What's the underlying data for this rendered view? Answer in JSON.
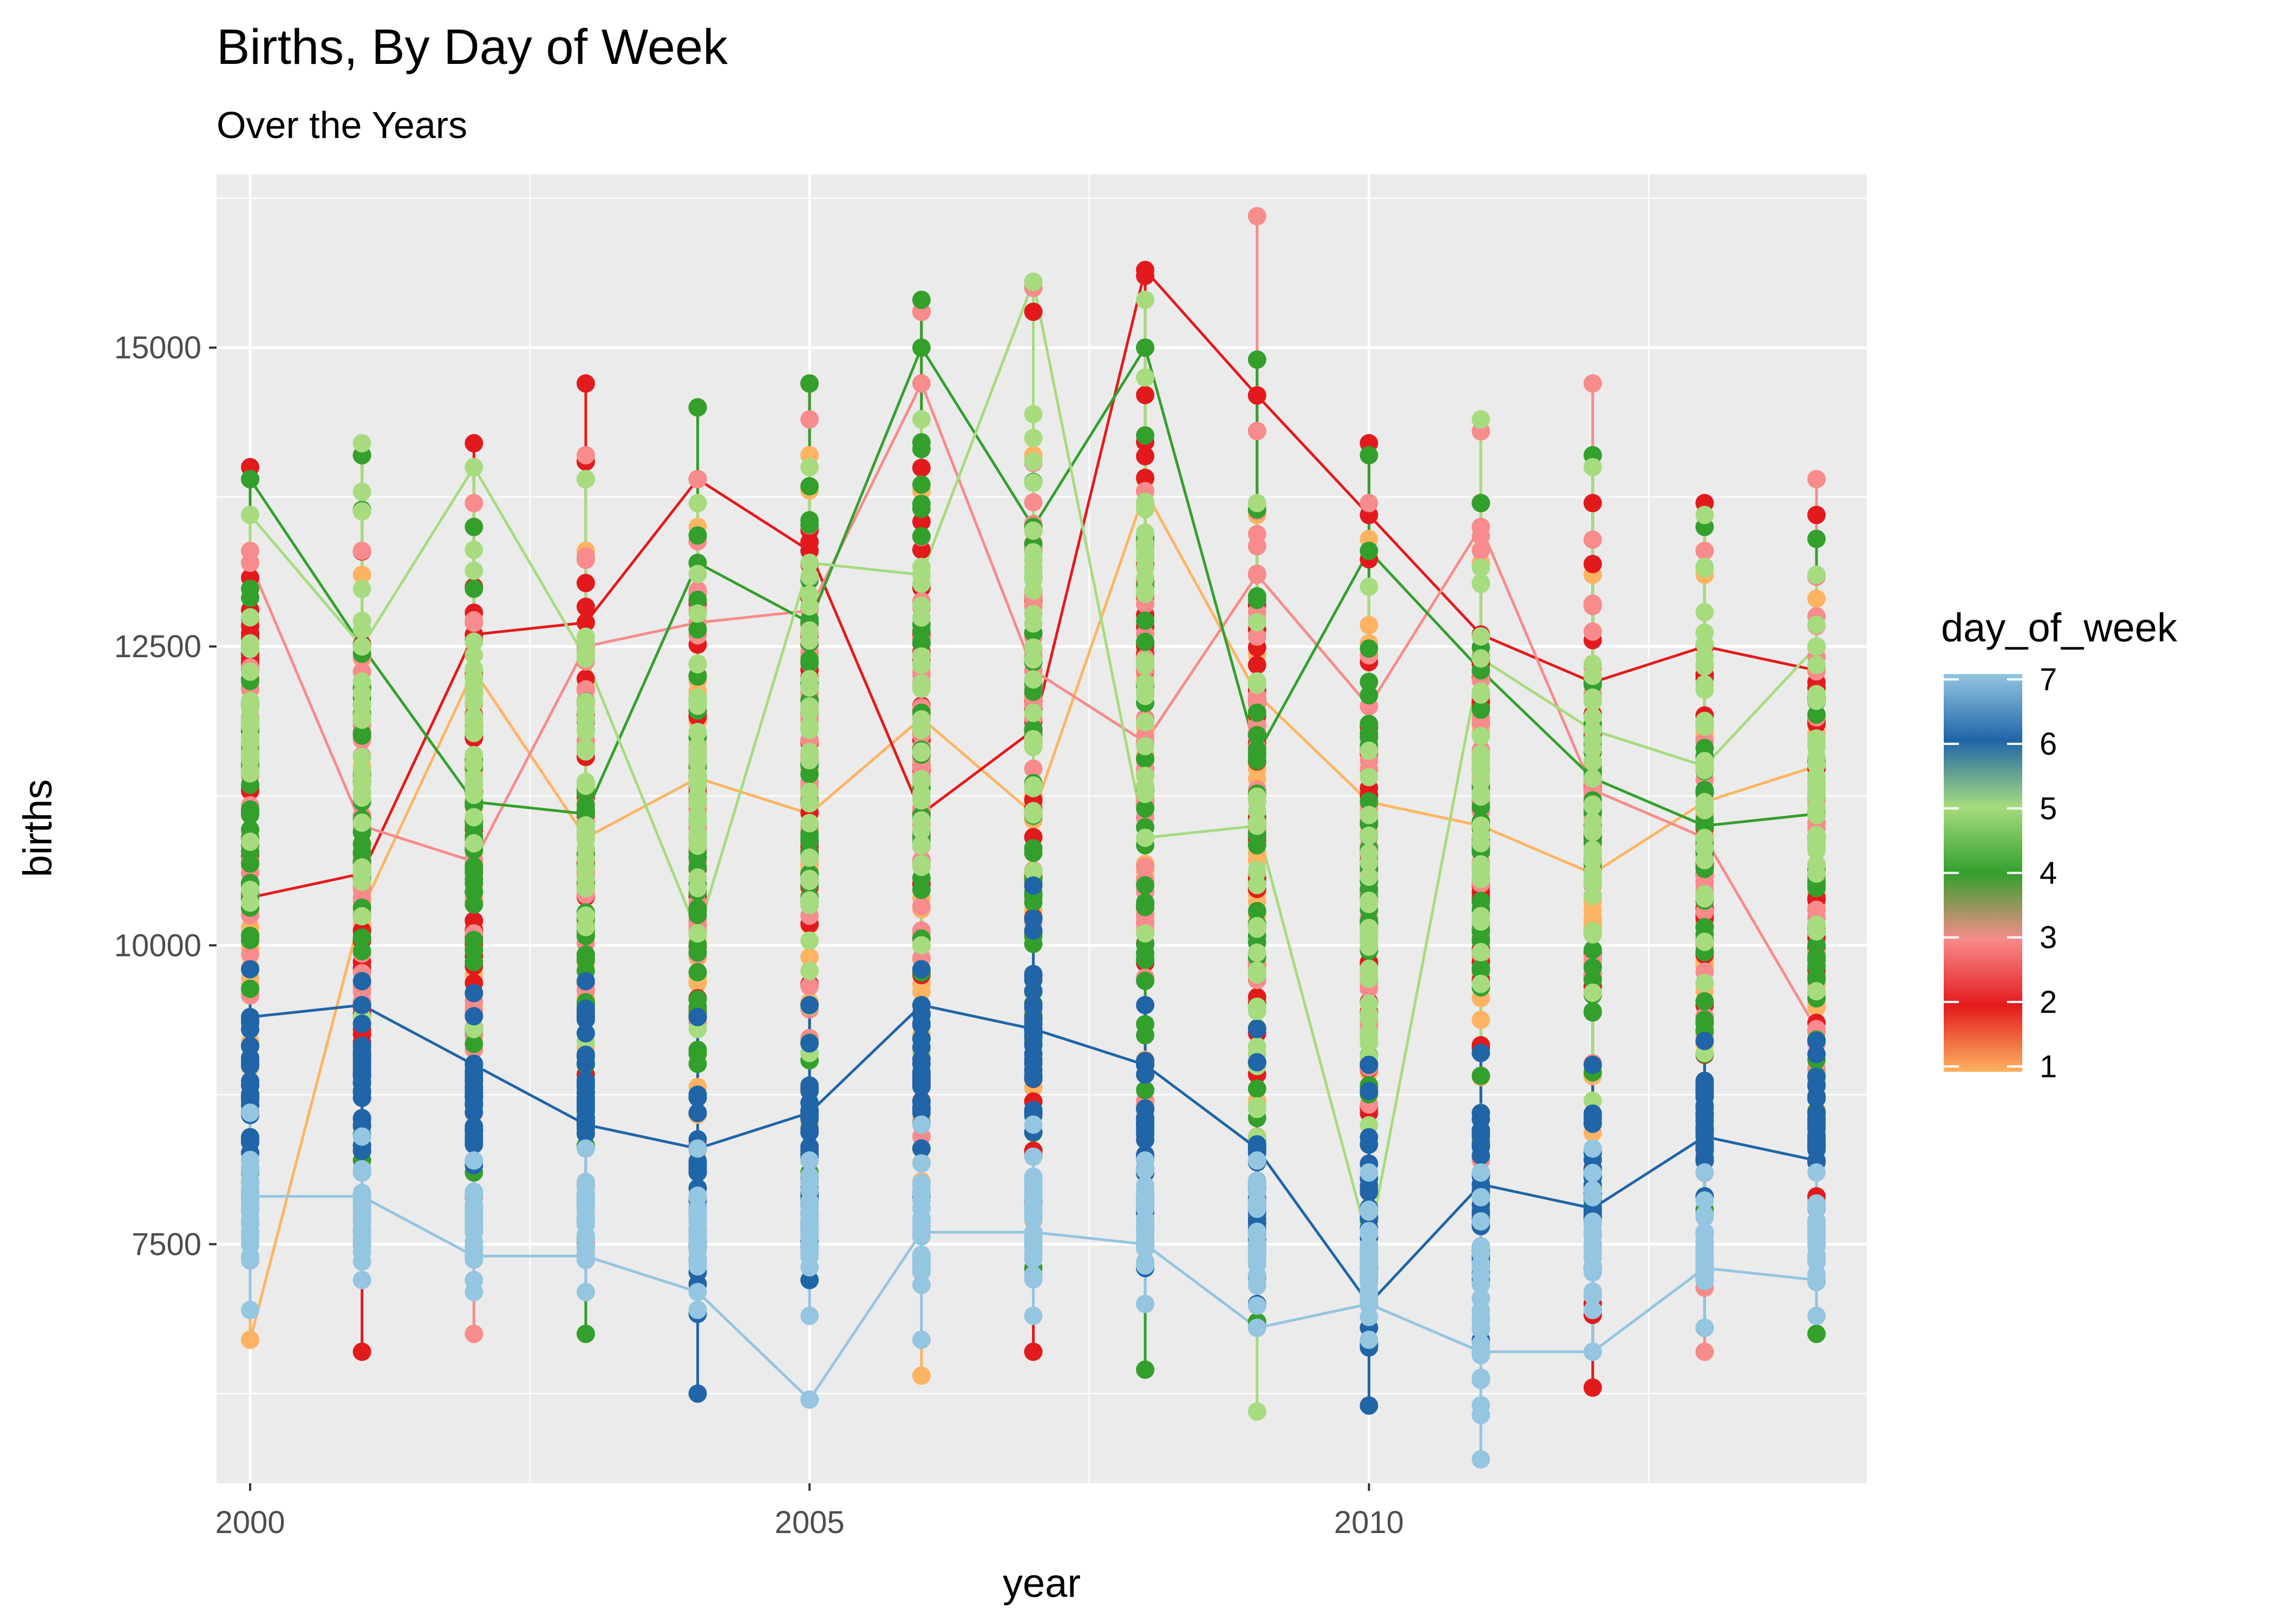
{
  "chart_data": {
    "type": "scatter",
    "title": "Births, By Day of Week",
    "subtitle": "Over the Years",
    "xlabel": "year",
    "ylabel": "births",
    "xlim": [
      1999.7,
      2014.45
    ],
    "ylim": [
      5500,
      16450
    ],
    "x_ticks": [
      2000,
      2005,
      2010
    ],
    "y_ticks": [
      7500,
      10000,
      12500,
      15000
    ],
    "grid": true,
    "legend": {
      "title": "day_of_week",
      "position": "right",
      "type": "colorbar",
      "min": 1,
      "max": 7,
      "ticks": [
        1,
        2,
        3,
        4,
        5,
        6,
        7
      ]
    },
    "colors": {
      "1": "#FDB462",
      "2": "#E31A1C",
      "3": "#F88B8B",
      "4": "#33A02C",
      "5": "#A6DC7E",
      "6": "#1F65A8",
      "7": "#94C5E1"
    },
    "series": [
      {
        "day_of_week": 1,
        "x": [
          2000,
          2001,
          2002,
          2003,
          2004,
          2005,
          2006,
          2007,
          2008,
          2009,
          2010,
          2011,
          2012,
          2013,
          2014
        ],
        "low": [
          6700,
          7600,
          7600,
          7400,
          7600,
          8500,
          6400,
          7700,
          8100,
          8700,
          7300,
          8100,
          7800,
          7400,
          7500
        ],
        "high": [
          13200,
          13100,
          13500,
          13300,
          13500,
          14100,
          13800,
          14100,
          13900,
          13600,
          13400,
          13200,
          13100,
          13100,
          12900
        ],
        "path": [
          6700,
          10300,
          12300,
          10900,
          11400,
          11100,
          11900,
          11100,
          13800,
          12100,
          11200,
          11000,
          10600,
          11200,
          11500
        ]
      },
      {
        "day_of_week": 2,
        "x": [
          2000,
          2001,
          2002,
          2003,
          2004,
          2005,
          2006,
          2007,
          2008,
          2009,
          2010,
          2011,
          2012,
          2013,
          2014
        ],
        "low": [
          10400,
          6600,
          7900,
          7500,
          8600,
          8800,
          8700,
          6600,
          7800,
          8300,
          7300,
          7900,
          6300,
          7200,
          7900
        ],
        "high": [
          14000,
          14100,
          14200,
          14700,
          14500,
          14700,
          15300,
          15300,
          15600,
          14600,
          14200,
          13700,
          13700,
          13700,
          13600
        ],
        "path": [
          10400,
          10600,
          12600,
          12700,
          13900,
          13300,
          11100,
          11800,
          15650,
          14600,
          13600,
          12600,
          12200,
          12500,
          12300
        ]
      },
      {
        "day_of_week": 3,
        "x": [
          2000,
          2001,
          2002,
          2003,
          2004,
          2005,
          2006,
          2007,
          2008,
          2009,
          2010,
          2011,
          2012,
          2013,
          2014
        ],
        "low": [
          8700,
          7700,
          6750,
          7400,
          7500,
          7700,
          8400,
          8600,
          8700,
          8400,
          7200,
          8200,
          7700,
          6600,
          7800
        ],
        "high": [
          13300,
          13300,
          13700,
          14100,
          13900,
          14400,
          15300,
          15500,
          13800,
          16100,
          13700,
          14300,
          14700,
          13300,
          13900
        ],
        "path": [
          13200,
          11000,
          10700,
          12500,
          12700,
          12800,
          14700,
          12300,
          11700,
          13100,
          12000,
          13500,
          11300,
          10900,
          9300
        ]
      },
      {
        "day_of_week": 4,
        "x": [
          2000,
          2001,
          2002,
          2003,
          2004,
          2005,
          2006,
          2007,
          2008,
          2009,
          2010,
          2011,
          2012,
          2013,
          2014
        ],
        "low": [
          8100,
          8200,
          8100,
          6750,
          7800,
          8100,
          8300,
          7300,
          6450,
          6850,
          7700,
          7900,
          7300,
          6800,
          6750
        ],
        "high": [
          13900,
          14100,
          13500,
          13900,
          14500,
          14700,
          15400,
          15550,
          15000,
          14900,
          14100,
          13700,
          14100,
          13500,
          13400
        ],
        "path": [
          13900,
          12500,
          11200,
          11100,
          13200,
          12700,
          15000,
          13500,
          15000,
          11600,
          13300,
          12300,
          11400,
          11000,
          11100
        ]
      },
      {
        "day_of_week": 5,
        "x": [
          2000,
          2001,
          2002,
          2003,
          2004,
          2005,
          2006,
          2007,
          2008,
          2009,
          2010,
          2011,
          2012,
          2013,
          2014
        ],
        "low": [
          9800,
          9400,
          9300,
          9200,
          9300,
          9100,
          9100,
          9600,
          10100,
          6100,
          7500,
          8600,
          8700,
          9100,
          8900
        ],
        "high": [
          13600,
          14200,
          14000,
          13900,
          13700,
          14000,
          14400,
          15550,
          15400,
          13700,
          13000,
          14400,
          14000,
          13600,
          13100
        ],
        "path": [
          13600,
          12500,
          14000,
          12400,
          10100,
          13200,
          13100,
          15550,
          10900,
          11000,
          7500,
          12400,
          11800,
          11500,
          12500
        ]
      },
      {
        "day_of_week": 6,
        "x": [
          2000,
          2001,
          2002,
          2003,
          2004,
          2005,
          2006,
          2007,
          2008,
          2009,
          2010,
          2011,
          2012,
          2013,
          2014
        ],
        "low": [
          7900,
          8100,
          7800,
          7900,
          6250,
          7200,
          7900,
          7900,
          7300,
          7000,
          6150,
          6700,
          7300,
          7900,
          7800
        ],
        "high": [
          9800,
          9700,
          9600,
          9700,
          9400,
          9500,
          9800,
          10500,
          9500,
          9300,
          9000,
          9100,
          9000,
          9200,
          9200
        ],
        "path": [
          9400,
          9500,
          9000,
          8500,
          8300,
          8600,
          9500,
          9300,
          9000,
          8300,
          7000,
          8000,
          7800,
          8400,
          8200
        ]
      },
      {
        "day_of_week": 7,
        "x": [
          2000,
          2001,
          2002,
          2003,
          2004,
          2005,
          2006,
          2007,
          2008,
          2009,
          2010,
          2011,
          2012,
          2013,
          2014
        ],
        "low": [
          6950,
          7200,
          7100,
          7100,
          6950,
          6900,
          6700,
          6900,
          7000,
          6800,
          6700,
          5700,
          6600,
          6800,
          6900
        ],
        "high": [
          8600,
          8400,
          8200,
          8300,
          8300,
          8200,
          8500,
          8500,
          8200,
          8200,
          8100,
          8100,
          8300,
          8100,
          8100
        ],
        "path": [
          7900,
          7900,
          7400,
          7400,
          7100,
          6200,
          7600,
          7600,
          7500,
          6800,
          7000,
          6600,
          6600,
          7300,
          7200
        ]
      }
    ]
  }
}
